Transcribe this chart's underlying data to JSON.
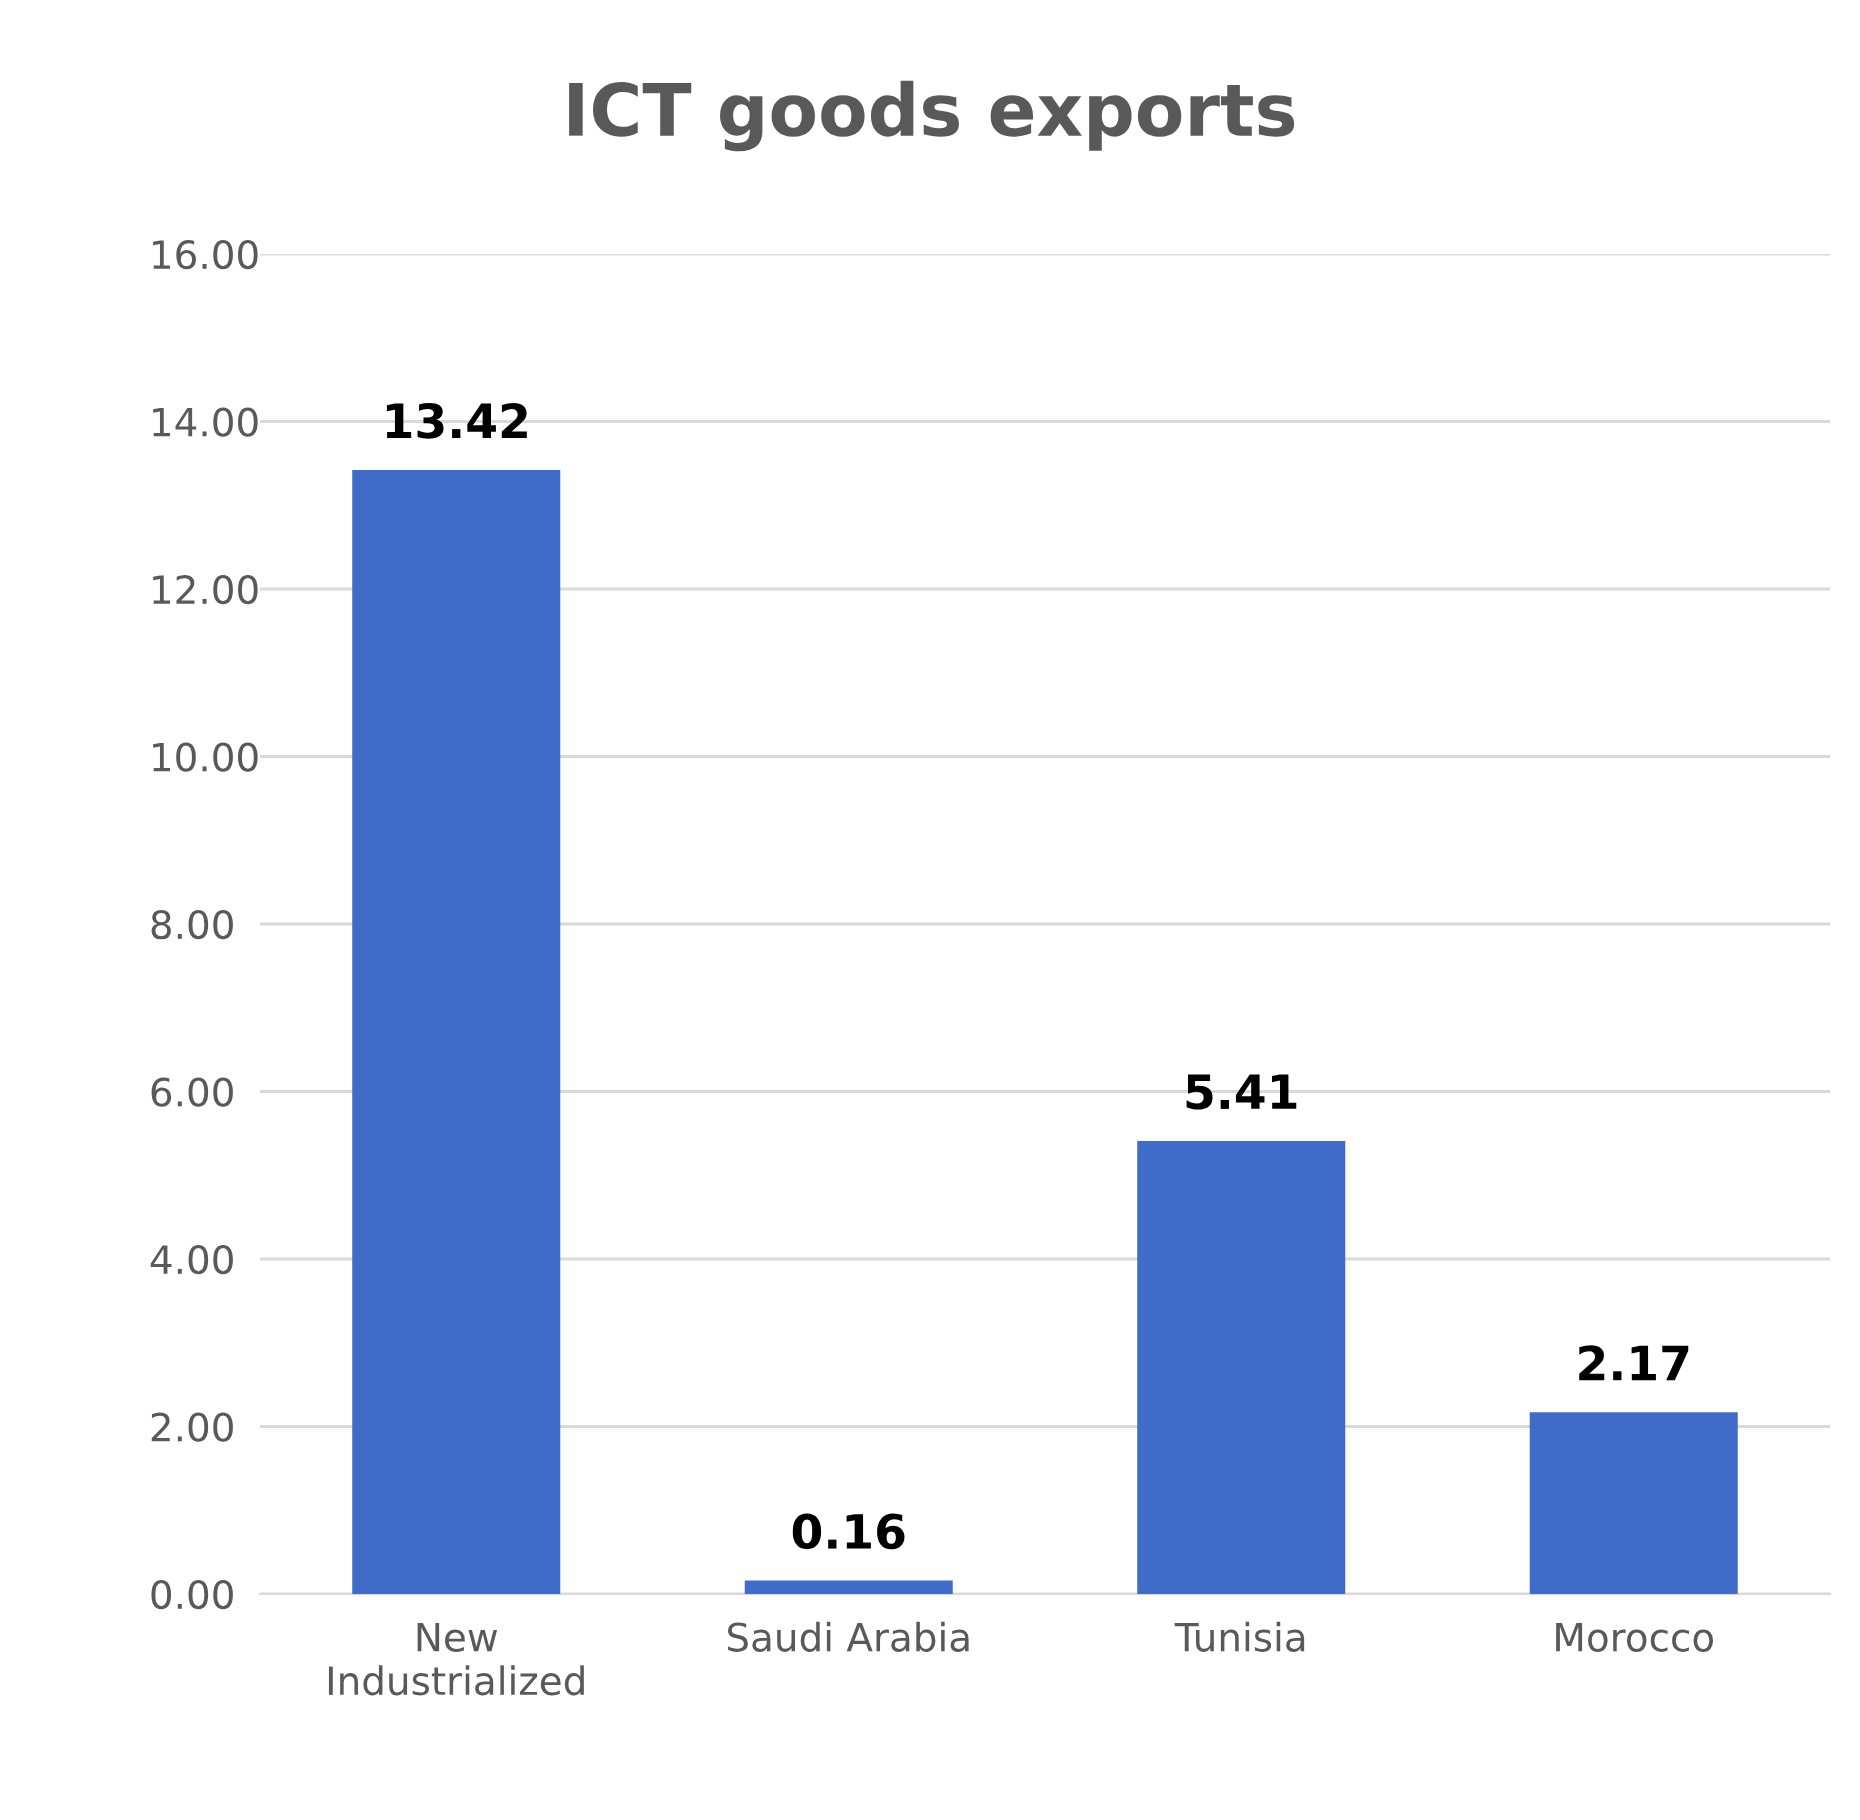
{
  "chart_data": {
    "type": "bar",
    "title": "ICT goods exports",
    "categories": [
      "New Industrialized",
      "Saudi Arabia",
      "Tunisia",
      "Morocco"
    ],
    "values": [
      13.42,
      0.16,
      5.41,
      2.17
    ],
    "color": "#3f6cc8",
    "ylim": [
      0,
      16
    ],
    "yticks": [
      {
        "value": 0,
        "label": "0.00"
      },
      {
        "value": 2,
        "label": "2.00"
      },
      {
        "value": 4,
        "label": "4.00"
      },
      {
        "value": 6,
        "label": "6.00"
      },
      {
        "value": 8,
        "label": "8.00"
      },
      {
        "value": 10,
        "label": "10.00"
      },
      {
        "value": 12,
        "label": "12.00"
      },
      {
        "value": 14,
        "label": "14.00"
      },
      {
        "value": 16,
        "label": "16.00"
      }
    ],
    "grid": "y",
    "data_labels": true
  }
}
